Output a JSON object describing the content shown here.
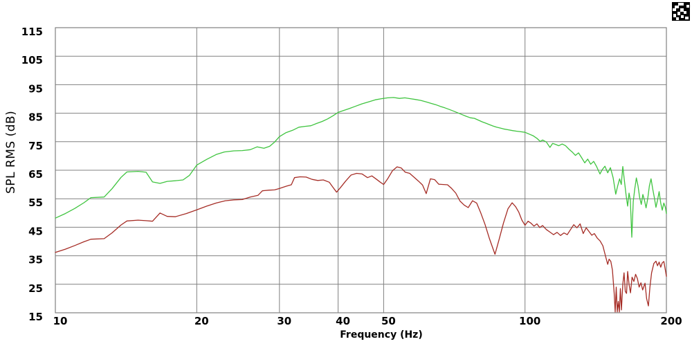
{
  "page": {
    "background": "#ffffff"
  },
  "header": {
    "corner_icon": "dithered-logo-glyph"
  },
  "chart_data": {
    "type": "line",
    "title": "",
    "xlabel": "Frequency (Hz)",
    "ylabel": "SPL RMS (dB)",
    "x_scale": "log",
    "xlim": [
      10,
      200
    ],
    "ylim": [
      15,
      115
    ],
    "x_ticks": [
      10,
      20,
      30,
      40,
      50,
      100,
      200
    ],
    "y_ticks": [
      15,
      25,
      35,
      45,
      55,
      65,
      75,
      85,
      95,
      105,
      115
    ],
    "x_gridlines": [
      20,
      30,
      40,
      50,
      100
    ],
    "grid": true,
    "legend_position": "none",
    "colors": {
      "grid": "#808080",
      "axis_text": "#000000",
      "plot_background": "#ffffff"
    },
    "series": [
      {
        "name": "green-trace",
        "color": "#3fc43f",
        "points": [
          [
            10,
            48.2
          ],
          [
            10.5,
            49.8
          ],
          [
            11,
            51.6
          ],
          [
            11.5,
            53.6
          ],
          [
            11.9,
            55.4
          ],
          [
            12.7,
            55.6
          ],
          [
            13.2,
            58.5
          ],
          [
            13.8,
            62.5
          ],
          [
            14.2,
            64.4
          ],
          [
            15,
            64.6
          ],
          [
            15.6,
            64.3
          ],
          [
            16.1,
            60.9
          ],
          [
            16.7,
            60.4
          ],
          [
            17.3,
            61.1
          ],
          [
            18,
            61.3
          ],
          [
            18.7,
            61.6
          ],
          [
            19.3,
            63.2
          ],
          [
            20,
            66.8
          ],
          [
            21,
            68.8
          ],
          [
            22,
            70.5
          ],
          [
            22.9,
            71.4
          ],
          [
            24,
            71.8
          ],
          [
            25,
            71.9
          ],
          [
            26,
            72.2
          ],
          [
            26.9,
            73.2
          ],
          [
            27.8,
            72.7
          ],
          [
            28.6,
            73.4
          ],
          [
            29.3,
            74.9
          ],
          [
            30,
            76.8
          ],
          [
            31,
            78.2
          ],
          [
            32,
            79.0
          ],
          [
            33,
            80.1
          ],
          [
            34,
            80.4
          ],
          [
            35,
            80.6
          ],
          [
            36,
            81.4
          ],
          [
            37,
            82.1
          ],
          [
            38,
            83.0
          ],
          [
            39,
            84.1
          ],
          [
            40,
            85.3
          ],
          [
            41,
            85.9
          ],
          [
            42.2,
            86.6
          ],
          [
            43.5,
            87.4
          ],
          [
            45,
            88.3
          ],
          [
            46.5,
            89.0
          ],
          [
            48,
            89.7
          ],
          [
            49.5,
            90.1
          ],
          [
            51,
            90.4
          ],
          [
            52.5,
            90.5
          ],
          [
            54,
            90.2
          ],
          [
            55.5,
            90.4
          ],
          [
            57,
            90.1
          ],
          [
            58.5,
            89.8
          ],
          [
            60,
            89.5
          ],
          [
            61.5,
            89.0
          ],
          [
            63,
            88.5
          ],
          [
            64.5,
            88.0
          ],
          [
            66,
            87.4
          ],
          [
            67.5,
            86.9
          ],
          [
            69,
            86.3
          ],
          [
            70.5,
            85.7
          ],
          [
            72,
            85.1
          ],
          [
            73.5,
            84.5
          ],
          [
            75,
            83.9
          ],
          [
            76.5,
            83.4
          ],
          [
            78,
            83.2
          ],
          [
            79.5,
            82.6
          ],
          [
            81,
            82.0
          ],
          [
            82.5,
            81.5
          ],
          [
            84,
            81.0
          ],
          [
            85.5,
            80.5
          ],
          [
            87,
            80.1
          ],
          [
            88.5,
            79.8
          ],
          [
            90,
            79.5
          ],
          [
            92,
            79.2
          ],
          [
            94,
            78.9
          ],
          [
            96,
            78.7
          ],
          [
            98,
            78.5
          ],
          [
            100,
            78.3
          ],
          [
            102,
            77.7
          ],
          [
            104,
            77.1
          ],
          [
            106,
            76.2
          ],
          [
            107.7,
            75.1
          ],
          [
            109,
            75.6
          ],
          [
            111,
            74.9
          ],
          [
            113,
            73.0
          ],
          [
            114.5,
            74.4
          ],
          [
            116,
            74.1
          ],
          [
            118,
            73.6
          ],
          [
            120,
            74.2
          ],
          [
            122,
            73.6
          ],
          [
            124,
            72.4
          ],
          [
            126,
            71.4
          ],
          [
            128,
            70.2
          ],
          [
            130,
            71.1
          ],
          [
            132,
            69.4
          ],
          [
            134,
            67.6
          ],
          [
            136,
            68.9
          ],
          [
            138,
            67.1
          ],
          [
            140,
            68.1
          ],
          [
            142,
            66.3
          ],
          [
            144.4,
            63.7
          ],
          [
            146,
            65.2
          ],
          [
            148,
            66.4
          ],
          [
            150,
            64.1
          ],
          [
            152,
            65.9
          ],
          [
            154,
            62.4
          ],
          [
            156,
            56.6
          ],
          [
            157.5,
            59.5
          ],
          [
            159,
            62.0
          ],
          [
            160.3,
            60.0
          ],
          [
            161.5,
            66.3
          ],
          [
            163,
            60.5
          ],
          [
            164.2,
            56.0
          ],
          [
            165.4,
            52.4
          ],
          [
            166.5,
            57.0
          ],
          [
            167.6,
            54.5
          ],
          [
            168.8,
            41.5
          ],
          [
            170,
            54.0
          ],
          [
            171.3,
            58.5
          ],
          [
            172.6,
            62.3
          ],
          [
            174,
            59.5
          ],
          [
            175.4,
            55.5
          ],
          [
            176.8,
            53.0
          ],
          [
            178.2,
            56.5
          ],
          [
            179.6,
            54.5
          ],
          [
            181,
            51.8
          ],
          [
            182.5,
            55.0
          ],
          [
            184,
            59.5
          ],
          [
            185.5,
            62.0
          ],
          [
            187,
            58.5
          ],
          [
            188.5,
            55.5
          ],
          [
            190,
            52.0
          ],
          [
            191.5,
            54.5
          ],
          [
            193,
            57.5
          ],
          [
            194.5,
            53.5
          ],
          [
            196,
            51.0
          ],
          [
            197.5,
            53.5
          ],
          [
            199,
            52.0
          ],
          [
            200,
            49.8
          ]
        ]
      },
      {
        "name": "dark-red-trace",
        "color": "#a52c25",
        "points": [
          [
            10,
            36.2
          ],
          [
            10.5,
            37.3
          ],
          [
            11,
            38.6
          ],
          [
            11.5,
            39.9
          ],
          [
            11.9,
            40.8
          ],
          [
            12.7,
            41.0
          ],
          [
            13.2,
            43.0
          ],
          [
            13.8,
            45.8
          ],
          [
            14.2,
            47.2
          ],
          [
            15,
            47.5
          ],
          [
            15.6,
            47.3
          ],
          [
            16.1,
            47.1
          ],
          [
            16.7,
            50.0
          ],
          [
            17.3,
            48.8
          ],
          [
            18,
            48.7
          ],
          [
            19,
            49.8
          ],
          [
            20,
            51.1
          ],
          [
            21,
            52.4
          ],
          [
            22,
            53.5
          ],
          [
            23,
            54.3
          ],
          [
            24,
            54.6
          ],
          [
            25,
            54.7
          ],
          [
            26,
            55.6
          ],
          [
            27,
            56.2
          ],
          [
            27.6,
            57.8
          ],
          [
            28.5,
            58.0
          ],
          [
            29.3,
            58.1
          ],
          [
            30,
            58.6
          ],
          [
            31,
            59.4
          ],
          [
            31.8,
            59.9
          ],
          [
            32.3,
            62.4
          ],
          [
            33.2,
            62.7
          ],
          [
            34.2,
            62.6
          ],
          [
            35.2,
            61.8
          ],
          [
            36.2,
            61.4
          ],
          [
            37.2,
            61.6
          ],
          [
            38.3,
            60.8
          ],
          [
            39,
            59.0
          ],
          [
            39.7,
            57.3
          ],
          [
            40.5,
            59.0
          ],
          [
            41.5,
            61.2
          ],
          [
            42.6,
            63.3
          ],
          [
            43.8,
            63.9
          ],
          [
            45,
            63.7
          ],
          [
            46.2,
            62.4
          ],
          [
            47.2,
            63.0
          ],
          [
            48.3,
            61.8
          ],
          [
            49.2,
            60.8
          ],
          [
            50,
            60.0
          ],
          [
            51,
            62.0
          ],
          [
            52.2,
            64.8
          ],
          [
            53.4,
            66.2
          ],
          [
            54.5,
            65.8
          ],
          [
            55.6,
            64.3
          ],
          [
            56.8,
            63.9
          ],
          [
            58,
            62.6
          ],
          [
            59.3,
            61.2
          ],
          [
            60.5,
            59.8
          ],
          [
            61.6,
            56.8
          ],
          [
            62.9,
            62.0
          ],
          [
            64.2,
            61.7
          ],
          [
            65.5,
            60.1
          ],
          [
            67,
            60.0
          ],
          [
            68.4,
            59.9
          ],
          [
            69.8,
            58.6
          ],
          [
            71.2,
            57.0
          ],
          [
            72.7,
            54.2
          ],
          [
            74.2,
            52.8
          ],
          [
            75.7,
            51.9
          ],
          [
            77.3,
            54.3
          ],
          [
            78.9,
            53.5
          ],
          [
            80.5,
            50.0
          ],
          [
            82.2,
            46.0
          ],
          [
            84,
            41.0
          ],
          [
            86.3,
            35.5
          ],
          [
            88,
            40.5
          ],
          [
            90,
            46.5
          ],
          [
            92,
            51.5
          ],
          [
            93.9,
            53.6
          ],
          [
            95.5,
            52.2
          ],
          [
            97,
            50.3
          ],
          [
            98.5,
            47.5
          ],
          [
            100,
            45.7
          ],
          [
            101.5,
            47.1
          ],
          [
            103,
            46.4
          ],
          [
            104.5,
            45.4
          ],
          [
            106,
            46.2
          ],
          [
            107.5,
            44.9
          ],
          [
            109,
            45.6
          ],
          [
            111,
            44.2
          ],
          [
            113,
            43.3
          ],
          [
            115,
            42.4
          ],
          [
            117,
            43.2
          ],
          [
            119,
            42.1
          ],
          [
            121,
            43.0
          ],
          [
            123,
            42.4
          ],
          [
            125,
            44.2
          ],
          [
            127,
            45.9
          ],
          [
            129,
            44.8
          ],
          [
            131,
            46.2
          ],
          [
            133,
            42.8
          ],
          [
            135,
            44.8
          ],
          [
            137,
            43.4
          ],
          [
            138.7,
            42.2
          ],
          [
            140.5,
            42.8
          ],
          [
            142.5,
            41.2
          ],
          [
            144.5,
            40.2
          ],
          [
            146.5,
            38.5
          ],
          [
            148.4,
            34.9
          ],
          [
            150,
            32.0
          ],
          [
            151,
            33.8
          ],
          [
            152.3,
            33.0
          ],
          [
            153.5,
            30.0
          ],
          [
            154.8,
            22.0
          ],
          [
            155.6,
            15.3
          ],
          [
            156.4,
            24.0
          ],
          [
            157.2,
            15.3
          ],
          [
            158,
            19.0
          ],
          [
            158.8,
            15.3
          ],
          [
            159.6,
            23.5
          ],
          [
            160.4,
            16.0
          ],
          [
            161.5,
            25.0
          ],
          [
            162.5,
            29.0
          ],
          [
            163.5,
            22.5
          ],
          [
            164.5,
            21.8
          ],
          [
            165.4,
            29.5
          ],
          [
            166.5,
            25.0
          ],
          [
            167.7,
            22.0
          ],
          [
            169,
            27.5
          ],
          [
            170.5,
            26.0
          ],
          [
            172,
            28.5
          ],
          [
            173.5,
            27.0
          ],
          [
            175,
            24.0
          ],
          [
            176.5,
            25.5
          ],
          [
            178,
            23.0
          ],
          [
            180.1,
            25.4
          ],
          [
            181.5,
            20.0
          ],
          [
            183.1,
            17.4
          ],
          [
            184.5,
            24.0
          ],
          [
            186,
            29.0
          ],
          [
            188.1,
            32.3
          ],
          [
            190,
            33.1
          ],
          [
            191.5,
            31.5
          ],
          [
            193,
            32.8
          ],
          [
            194.5,
            31.0
          ],
          [
            196,
            32.5
          ],
          [
            197.5,
            33.0
          ],
          [
            199,
            30.0
          ],
          [
            200,
            27.8
          ]
        ]
      }
    ]
  }
}
